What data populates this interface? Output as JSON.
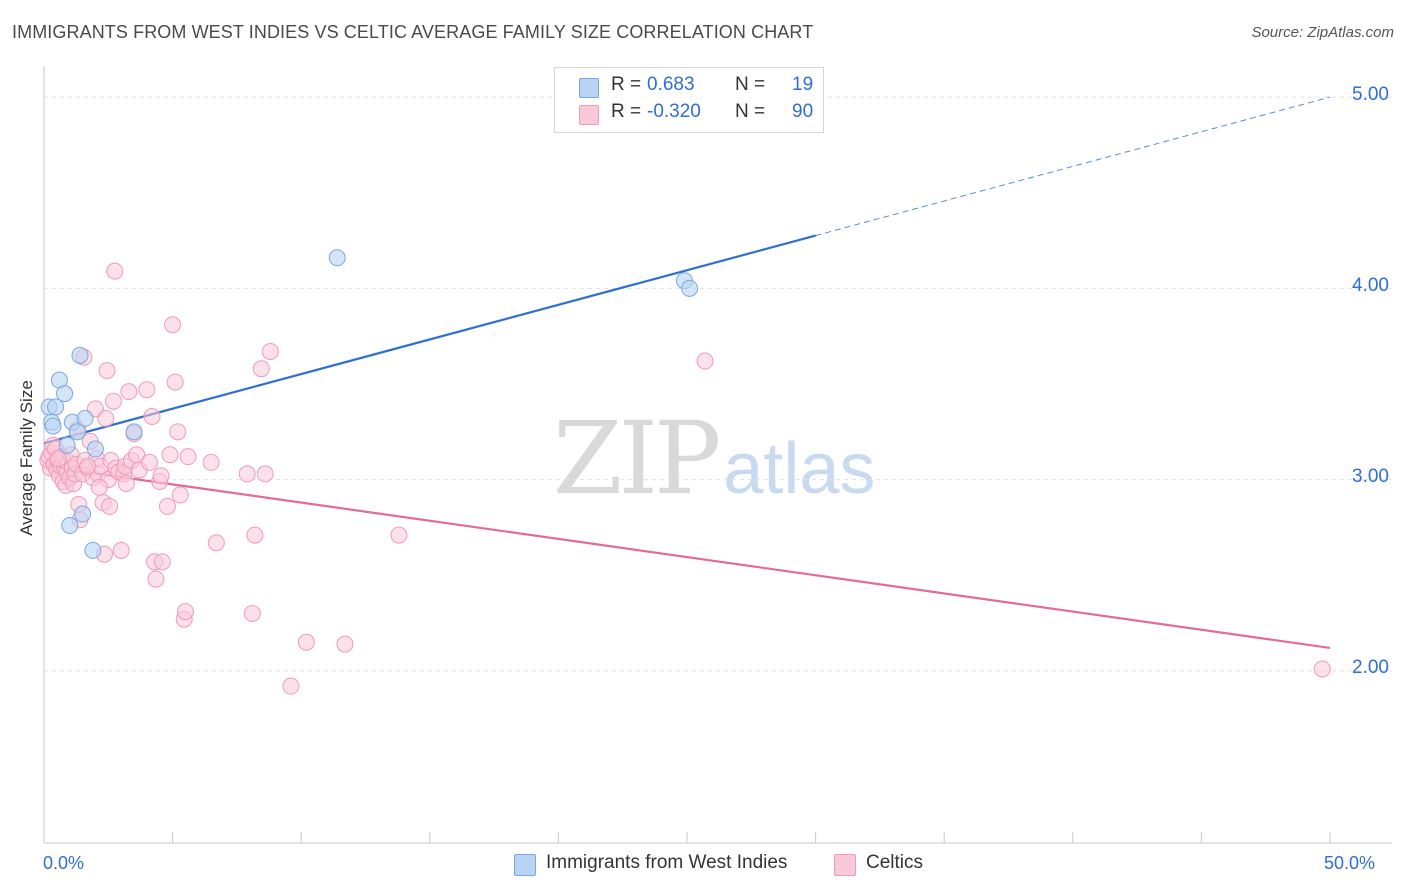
{
  "header": {
    "title": "IMMIGRANTS FROM WEST INDIES VS CELTIC AVERAGE FAMILY SIZE CORRELATION CHART",
    "source": "Source: ZipAtlas.com"
  },
  "watermark": {
    "zip": "ZIP",
    "atlas": "atlas"
  },
  "legend": {
    "rows": [
      {
        "r_label": "R =",
        "r_value": "0.683",
        "n_label": "N =",
        "n_value": "19"
      },
      {
        "r_label": "R =",
        "r_value": "-0.320",
        "n_label": "N =",
        "n_value": "90"
      }
    ]
  },
  "bottom_legend": [
    "Immigrants from West Indies",
    "Celtics"
  ],
  "colors": {
    "blue_fill": "#b9d3f3",
    "blue_stroke": "#7aa7e3",
    "blue_line": "#2f6fd1",
    "pink_fill": "#f9c9d8",
    "pink_stroke": "#ef9bb6",
    "pink_line": "#e66a97",
    "grid": "#e1e1e1",
    "axis_text": "#2f6fd1"
  },
  "chart_data": {
    "type": "scatter",
    "title": "IMMIGRANTS FROM WEST INDIES VS CELTIC AVERAGE FAMILY SIZE CORRELATION CHART",
    "xlabel": "",
    "ylabel": "Average Family Size",
    "x_tick_labels": [
      "0.0%",
      "50.0%"
    ],
    "y_tick_labels": [
      "2.00",
      "3.00",
      "4.00",
      "5.00"
    ],
    "xlim": [
      0,
      50
    ],
    "ylim": [
      1.1,
      5.1
    ],
    "grid": true,
    "legend_position": "top-center",
    "series": [
      {
        "name": "Immigrants from West Indies",
        "color": "#2f6fd1",
        "trend": {
          "x0": 0.0,
          "y0": 3.19,
          "x1": 50.0,
          "y1": 5.0,
          "solid_until_x": 30.0
        },
        "points": [
          [
            0.2,
            3.38
          ],
          [
            0.3,
            3.3
          ],
          [
            0.35,
            3.28
          ],
          [
            0.45,
            3.38
          ],
          [
            0.6,
            3.52
          ],
          [
            0.8,
            3.45
          ],
          [
            0.9,
            3.18
          ],
          [
            1.0,
            2.76
          ],
          [
            1.1,
            3.3
          ],
          [
            1.3,
            3.25
          ],
          [
            1.4,
            3.65
          ],
          [
            1.5,
            2.82
          ],
          [
            1.6,
            3.32
          ],
          [
            1.9,
            2.63
          ],
          [
            2.0,
            3.16
          ],
          [
            3.5,
            3.25
          ],
          [
            11.4,
            4.16
          ],
          [
            24.9,
            4.04
          ],
          [
            25.1,
            4.0
          ]
        ]
      },
      {
        "name": "Celtics",
        "color": "#e66a97",
        "trend": {
          "x0": 0.0,
          "y0": 3.07,
          "x1": 50.0,
          "y1": 2.12
        },
        "points": [
          [
            0.15,
            3.1
          ],
          [
            0.2,
            3.12
          ],
          [
            0.25,
            3.06
          ],
          [
            0.3,
            3.14
          ],
          [
            0.35,
            3.18
          ],
          [
            0.4,
            3.08
          ],
          [
            0.45,
            3.16
          ],
          [
            0.5,
            3.05
          ],
          [
            0.55,
            3.1
          ],
          [
            0.6,
            3.02
          ],
          [
            0.65,
            3.07
          ],
          [
            0.7,
            3.12
          ],
          [
            0.75,
            2.99
          ],
          [
            0.8,
            3.06
          ],
          [
            0.85,
            2.97
          ],
          [
            0.9,
            3.04
          ],
          [
            0.95,
            3.09
          ],
          [
            1.0,
            3.01
          ],
          [
            1.05,
            3.13
          ],
          [
            1.1,
            3.06
          ],
          [
            1.15,
            2.98
          ],
          [
            1.2,
            3.03
          ],
          [
            1.25,
            3.08
          ],
          [
            1.3,
            3.26
          ],
          [
            1.35,
            2.87
          ],
          [
            1.4,
            2.79
          ],
          [
            1.5,
            3.03
          ],
          [
            1.55,
            3.64
          ],
          [
            1.6,
            3.1
          ],
          [
            1.7,
            3.06
          ],
          [
            1.8,
            3.2
          ],
          [
            1.9,
            3.01
          ],
          [
            2.0,
            3.37
          ],
          [
            2.05,
            3.11
          ],
          [
            2.1,
            3.03
          ],
          [
            2.2,
            3.07
          ],
          [
            2.3,
            2.88
          ],
          [
            2.35,
            2.61
          ],
          [
            2.4,
            3.32
          ],
          [
            2.45,
            3.57
          ],
          [
            2.5,
            3.0
          ],
          [
            2.55,
            2.86
          ],
          [
            2.6,
            3.1
          ],
          [
            2.7,
            3.41
          ],
          [
            2.75,
            4.09
          ],
          [
            2.8,
            3.06
          ],
          [
            2.9,
            3.04
          ],
          [
            3.0,
            2.63
          ],
          [
            3.1,
            3.03
          ],
          [
            3.15,
            3.07
          ],
          [
            3.2,
            2.98
          ],
          [
            3.3,
            3.46
          ],
          [
            3.4,
            3.1
          ],
          [
            3.5,
            3.24
          ],
          [
            3.6,
            3.13
          ],
          [
            3.7,
            3.05
          ],
          [
            4.0,
            3.47
          ],
          [
            4.1,
            3.09
          ],
          [
            4.2,
            3.33
          ],
          [
            4.3,
            2.57
          ],
          [
            4.35,
            2.48
          ],
          [
            4.5,
            2.99
          ],
          [
            4.55,
            3.02
          ],
          [
            4.6,
            2.57
          ],
          [
            4.8,
            2.86
          ],
          [
            4.9,
            3.13
          ],
          [
            5.0,
            3.81
          ],
          [
            5.1,
            3.51
          ],
          [
            5.2,
            3.25
          ],
          [
            5.3,
            2.92
          ],
          [
            5.45,
            2.27
          ],
          [
            5.5,
            2.31
          ],
          [
            5.6,
            3.12
          ],
          [
            6.5,
            3.09
          ],
          [
            6.7,
            2.67
          ],
          [
            7.9,
            3.03
          ],
          [
            8.1,
            2.3
          ],
          [
            8.2,
            2.71
          ],
          [
            8.45,
            3.58
          ],
          [
            8.6,
            3.03
          ],
          [
            8.8,
            3.67
          ],
          [
            10.2,
            2.15
          ],
          [
            11.7,
            2.14
          ],
          [
            9.6,
            1.92
          ],
          [
            13.8,
            2.71
          ],
          [
            25.7,
            3.62
          ],
          [
            49.7,
            2.01
          ],
          [
            1.7,
            3.07
          ],
          [
            2.15,
            2.96
          ],
          [
            0.55,
            3.11
          ]
        ]
      }
    ]
  }
}
